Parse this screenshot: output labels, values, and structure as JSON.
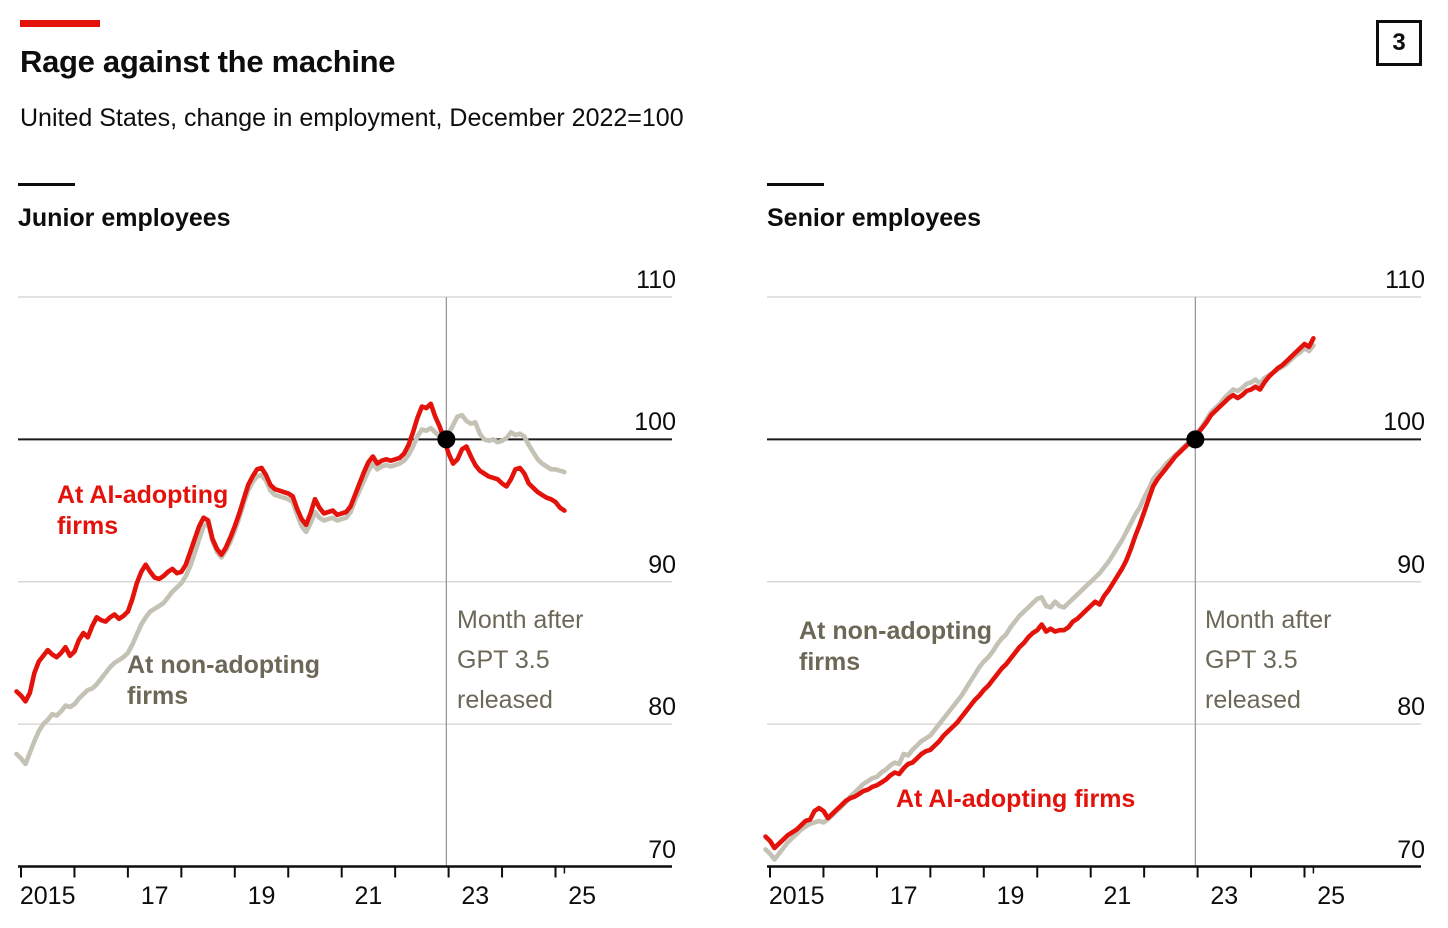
{
  "page": {
    "title": "Rage against the machine",
    "subtitle": "United States, change in employment, December 2022=100",
    "figure_number": "3"
  },
  "colors": {
    "accent_red": "#e3120b",
    "line_red": "#e3120b",
    "line_gray": "#c4c1b5",
    "annotation_text": "#6c6858",
    "gridline": "#dadada",
    "baseline_black": "#1a1a1a",
    "axis_black": "#0d0d0d",
    "vline_gray": "#9a9a9a",
    "dot_black": "#000000"
  },
  "chart_data": [
    {
      "type": "line",
      "panel_title": "Junior employees",
      "ylim": [
        70,
        110
      ],
      "y_tick_values": [
        110,
        100,
        90,
        80,
        70
      ],
      "y_tick_labels": [
        "110",
        "100",
        "90",
        "80",
        "70"
      ],
      "baseline_value": 100,
      "x_tick_labels": [
        "2015",
        "17",
        "19",
        "21",
        "23",
        "25"
      ],
      "grid": "horizontal-only",
      "legend_position": "direct-labels-on-chart",
      "annotation": {
        "lines": [
          "Month after",
          "GPT 3.5",
          "released"
        ],
        "x_year": 2022.958,
        "dot_value": 100
      },
      "series": [
        {
          "id": "junior-ai-adopting",
          "name": "At AI-adopting firms",
          "label_lines": [
            "At AI-adopting",
            "firms"
          ],
          "color_key": "line_red",
          "x_start_year": 2014.9167,
          "frequency": "monthly",
          "values": [
            82.3,
            82.0,
            81.6,
            82.2,
            83.6,
            84.4,
            84.8,
            85.2,
            84.9,
            84.7,
            85.0,
            85.4,
            84.8,
            85.1,
            85.9,
            86.4,
            86.1,
            86.9,
            87.5,
            87.3,
            87.2,
            87.5,
            87.7,
            87.4,
            87.6,
            87.9,
            88.8,
            89.9,
            90.7,
            91.2,
            90.7,
            90.3,
            90.2,
            90.4,
            90.7,
            90.9,
            90.6,
            90.7,
            91.2,
            92.1,
            93.0,
            93.9,
            94.5,
            94.3,
            93.0,
            92.3,
            91.9,
            92.4,
            93.1,
            93.9,
            94.8,
            95.8,
            96.8,
            97.4,
            97.9,
            98.0,
            97.5,
            96.8,
            96.5,
            96.4,
            96.3,
            96.2,
            96.0,
            95.1,
            94.4,
            94.0,
            94.8,
            95.8,
            95.2,
            94.8,
            94.9,
            95.0,
            94.7,
            94.8,
            94.9,
            95.3,
            96.1,
            96.9,
            97.7,
            98.4,
            98.8,
            98.3,
            98.5,
            98.6,
            98.5,
            98.6,
            98.7,
            99.0,
            99.6,
            100.5,
            101.5,
            102.3,
            102.2,
            102.5,
            101.6,
            100.9,
            100.0,
            99.0,
            98.3,
            98.6,
            99.3,
            99.5,
            98.8,
            98.2,
            97.8,
            97.6,
            97.4,
            97.3,
            97.2,
            96.9,
            96.7,
            97.2,
            97.9,
            98.0,
            97.6,
            96.9,
            96.6,
            96.3,
            96.1,
            95.9,
            95.8,
            95.6,
            95.2,
            95.0
          ]
        },
        {
          "id": "junior-non-adopting",
          "name": "At non-adopting firms",
          "label_lines": [
            "At non-adopting",
            "firms"
          ],
          "color_key": "line_gray",
          "x_start_year": 2014.9167,
          "frequency": "monthly",
          "values": [
            77.9,
            77.6,
            77.2,
            78.0,
            78.8,
            79.5,
            80.0,
            80.3,
            80.7,
            80.6,
            80.9,
            81.3,
            81.2,
            81.4,
            81.8,
            82.1,
            82.4,
            82.5,
            82.8,
            83.2,
            83.6,
            84.0,
            84.3,
            84.5,
            84.7,
            85.0,
            85.6,
            86.3,
            87.0,
            87.5,
            87.9,
            88.1,
            88.3,
            88.5,
            88.9,
            89.3,
            89.6,
            89.9,
            90.4,
            91.1,
            92.0,
            93.0,
            93.9,
            94.1,
            92.9,
            92.1,
            91.7,
            92.2,
            92.8,
            93.6,
            94.5,
            95.5,
            96.4,
            97.0,
            97.4,
            97.5,
            97.1,
            96.4,
            96.1,
            96.0,
            95.9,
            95.8,
            95.6,
            94.7,
            93.9,
            93.5,
            94.1,
            94.9,
            94.5,
            94.3,
            94.4,
            94.5,
            94.3,
            94.4,
            94.5,
            94.9,
            95.7,
            96.4,
            97.1,
            97.8,
            98.3,
            97.9,
            98.1,
            98.2,
            98.1,
            98.2,
            98.3,
            98.5,
            98.9,
            99.5,
            100.2,
            100.7,
            100.6,
            100.8,
            100.5,
            100.2,
            100.0,
            100.4,
            101.0,
            101.6,
            101.7,
            101.3,
            101.1,
            101.2,
            100.4,
            100.0,
            99.9,
            100.0,
            99.8,
            99.9,
            100.1,
            100.5,
            100.3,
            100.4,
            100.2,
            99.6,
            99.1,
            98.6,
            98.3,
            98.1,
            97.9,
            97.9,
            97.8,
            97.7
          ]
        }
      ]
    },
    {
      "type": "line",
      "panel_title": "Senior employees",
      "ylim": [
        70,
        110
      ],
      "y_tick_values": [
        110,
        100,
        90,
        80,
        70
      ],
      "y_tick_labels": [
        "110",
        "100",
        "90",
        "80",
        "70"
      ],
      "baseline_value": 100,
      "x_tick_labels": [
        "2015",
        "17",
        "19",
        "21",
        "23",
        "25"
      ],
      "grid": "horizontal-only",
      "legend_position": "direct-labels-on-chart",
      "annotation": {
        "lines": [
          "Month after",
          "GPT 3.5",
          "released"
        ],
        "x_year": 2022.958,
        "dot_value": 100
      },
      "series": [
        {
          "id": "senior-ai-adopting",
          "name": "At AI-adopting firms",
          "label_lines": [
            "At AI-adopting firms"
          ],
          "color_key": "line_red",
          "x_start_year": 2014.9167,
          "frequency": "monthly",
          "values": [
            72.1,
            71.8,
            71.3,
            71.6,
            71.9,
            72.2,
            72.4,
            72.6,
            72.9,
            73.2,
            73.3,
            73.9,
            74.1,
            73.9,
            73.4,
            73.7,
            74.0,
            74.3,
            74.6,
            74.8,
            74.9,
            75.1,
            75.3,
            75.4,
            75.6,
            75.7,
            75.9,
            76.1,
            76.4,
            76.6,
            76.5,
            76.9,
            77.2,
            77.3,
            77.6,
            77.9,
            78.1,
            78.2,
            78.5,
            78.8,
            79.2,
            79.5,
            79.8,
            80.1,
            80.5,
            80.9,
            81.3,
            81.7,
            82.0,
            82.4,
            82.7,
            83.1,
            83.5,
            83.9,
            84.2,
            84.6,
            85.0,
            85.4,
            85.7,
            86.1,
            86.4,
            86.6,
            87.0,
            86.5,
            86.7,
            86.5,
            86.6,
            86.6,
            86.8,
            87.2,
            87.4,
            87.7,
            88.0,
            88.3,
            88.6,
            88.4,
            89.0,
            89.4,
            89.9,
            90.4,
            90.9,
            91.5,
            92.3,
            93.2,
            94.0,
            94.9,
            95.8,
            96.7,
            97.2,
            97.6,
            98.0,
            98.4,
            98.8,
            99.1,
            99.4,
            99.7,
            100.0,
            100.4,
            100.8,
            101.2,
            101.7,
            102.0,
            102.3,
            102.6,
            102.9,
            103.1,
            102.9,
            103.1,
            103.4,
            103.5,
            103.7,
            103.5,
            104.0,
            104.4,
            104.7,
            105.0,
            105.2,
            105.5,
            105.8,
            106.1,
            106.4,
            106.7,
            106.5,
            107.1
          ]
        },
        {
          "id": "senior-non-adopting",
          "name": "At non-adopting firms",
          "label_lines": [
            "At non-adopting",
            "firms"
          ],
          "color_key": "line_gray",
          "x_start_year": 2014.9167,
          "frequency": "monthly",
          "values": [
            71.2,
            70.9,
            70.5,
            70.9,
            71.3,
            71.7,
            72.0,
            72.3,
            72.6,
            72.8,
            73.0,
            73.1,
            73.2,
            73.1,
            73.3,
            73.6,
            73.9,
            74.2,
            74.5,
            74.9,
            75.2,
            75.5,
            75.8,
            76.0,
            76.2,
            76.3,
            76.6,
            76.8,
            77.1,
            77.3,
            77.2,
            77.9,
            77.8,
            78.2,
            78.5,
            78.8,
            79.0,
            79.2,
            79.6,
            80.0,
            80.4,
            80.8,
            81.2,
            81.6,
            82.0,
            82.5,
            83.0,
            83.5,
            84.0,
            84.4,
            84.7,
            85.1,
            85.6,
            86.0,
            86.3,
            86.8,
            87.2,
            87.6,
            87.9,
            88.2,
            88.5,
            88.8,
            88.9,
            88.3,
            88.2,
            88.6,
            88.3,
            88.2,
            88.5,
            88.8,
            89.1,
            89.4,
            89.7,
            90.0,
            90.3,
            90.6,
            91.0,
            91.4,
            91.9,
            92.4,
            92.9,
            93.5,
            94.1,
            94.7,
            95.2,
            95.9,
            96.5,
            97.2,
            97.6,
            97.9,
            98.3,
            98.6,
            98.9,
            99.2,
            99.5,
            99.8,
            100.0,
            100.5,
            100.9,
            101.4,
            101.9,
            102.2,
            102.5,
            102.9,
            103.2,
            103.5,
            103.4,
            103.6,
            103.9,
            104.0,
            104.2,
            103.9,
            104.3,
            104.5,
            104.7,
            104.9,
            105.1,
            105.3,
            105.6,
            105.9,
            106.1,
            106.4,
            106.2,
            106.6
          ]
        }
      ]
    }
  ]
}
